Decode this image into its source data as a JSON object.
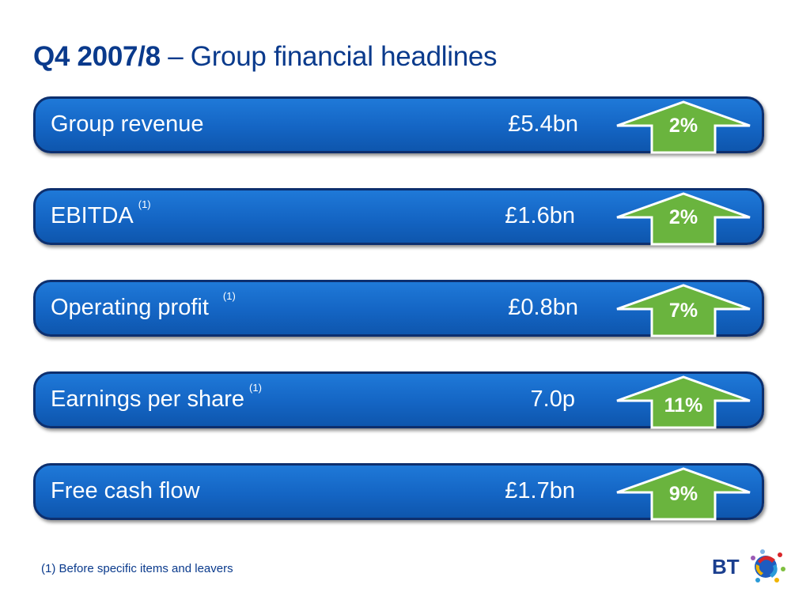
{
  "slide": {
    "title_bold": "Q4 2007/8",
    "title_rest": " – Group financial headlines"
  },
  "colors": {
    "title": "#0a3a8c",
    "panel": "#1465c4",
    "arrow_green": "#6ab43e",
    "footnote": "#0a3a8c"
  },
  "rows": [
    {
      "label": "Group revenue",
      "footnote_ref": "",
      "value": "£5.4bn",
      "change": "2%"
    },
    {
      "label": "EBITDA",
      "footnote_ref": "(1)",
      "value": "£1.6bn",
      "change": "2%"
    },
    {
      "label": "Operating profit",
      "footnote_ref": "(1)",
      "value": "£0.8bn",
      "change": "7%"
    },
    {
      "label": "Earnings per share",
      "footnote_ref": "(1)",
      "value": "7.0p",
      "change": "11%"
    },
    {
      "label": "Free cash flow",
      "footnote_ref": "",
      "value": "£1.7bn",
      "change": "9%"
    }
  ],
  "footnote": "(1) Before specific items and leavers",
  "logo": {
    "text": "BT",
    "icon": "bt-piper-logo-icon"
  }
}
